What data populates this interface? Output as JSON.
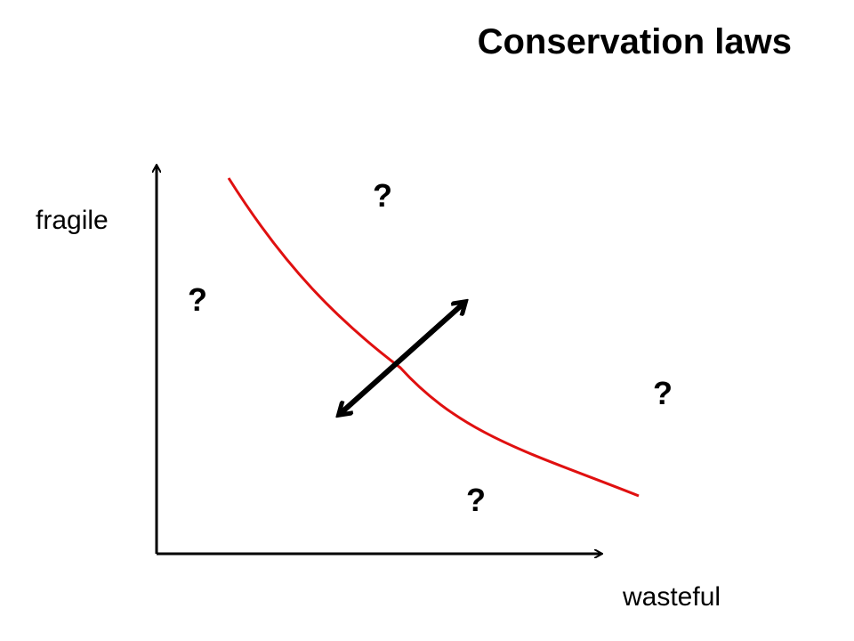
{
  "title": "Conservation laws",
  "axes": {
    "y_label": "fragile",
    "x_label": "wasteful"
  },
  "markers": [
    "?",
    "?",
    "?",
    "?"
  ]
}
